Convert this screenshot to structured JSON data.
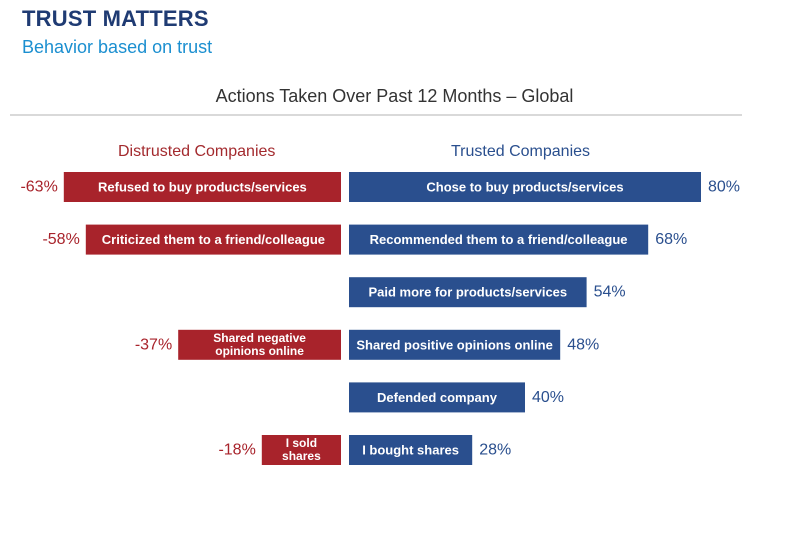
{
  "header": {
    "title": "TRUST MATTERS",
    "subtitle": "Behavior based on trust"
  },
  "colors": {
    "distrusted": "#a8232b",
    "trusted": "#2a4f8e",
    "title": "#1f3b73",
    "subtitle": "#1b8fd0"
  },
  "chart_data": {
    "type": "bar",
    "orientation": "horizontal-diverging",
    "title": "Actions Taken Over Past 12 Months – Global",
    "xlim": [
      -100,
      100
    ],
    "grid": false,
    "series": [
      {
        "name": "Distrusted Companies",
        "values": [
          -63,
          -58,
          null,
          -37,
          null,
          -18
        ],
        "labels": [
          [
            "Refused to buy products/services"
          ],
          [
            "Criticized them to a friend/colleague"
          ],
          null,
          [
            "Shared negative",
            "opinions online"
          ],
          null,
          [
            "I sold",
            "shares"
          ]
        ],
        "value_labels": [
          "-63%",
          "-58%",
          null,
          "-37%",
          null,
          "-18%"
        ]
      },
      {
        "name": "Trusted Companies",
        "values": [
          80,
          68,
          54,
          48,
          40,
          28
        ],
        "labels": [
          [
            "Chose to buy products/services"
          ],
          [
            "Recommended them to a friend/colleague"
          ],
          [
            "Paid more for products/services"
          ],
          [
            "Shared positive opinions online"
          ],
          [
            "Defended company"
          ],
          [
            "I bought shares"
          ]
        ],
        "value_labels": [
          "80%",
          "68%",
          "54%",
          "48%",
          "40%",
          "28%"
        ]
      }
    ]
  }
}
